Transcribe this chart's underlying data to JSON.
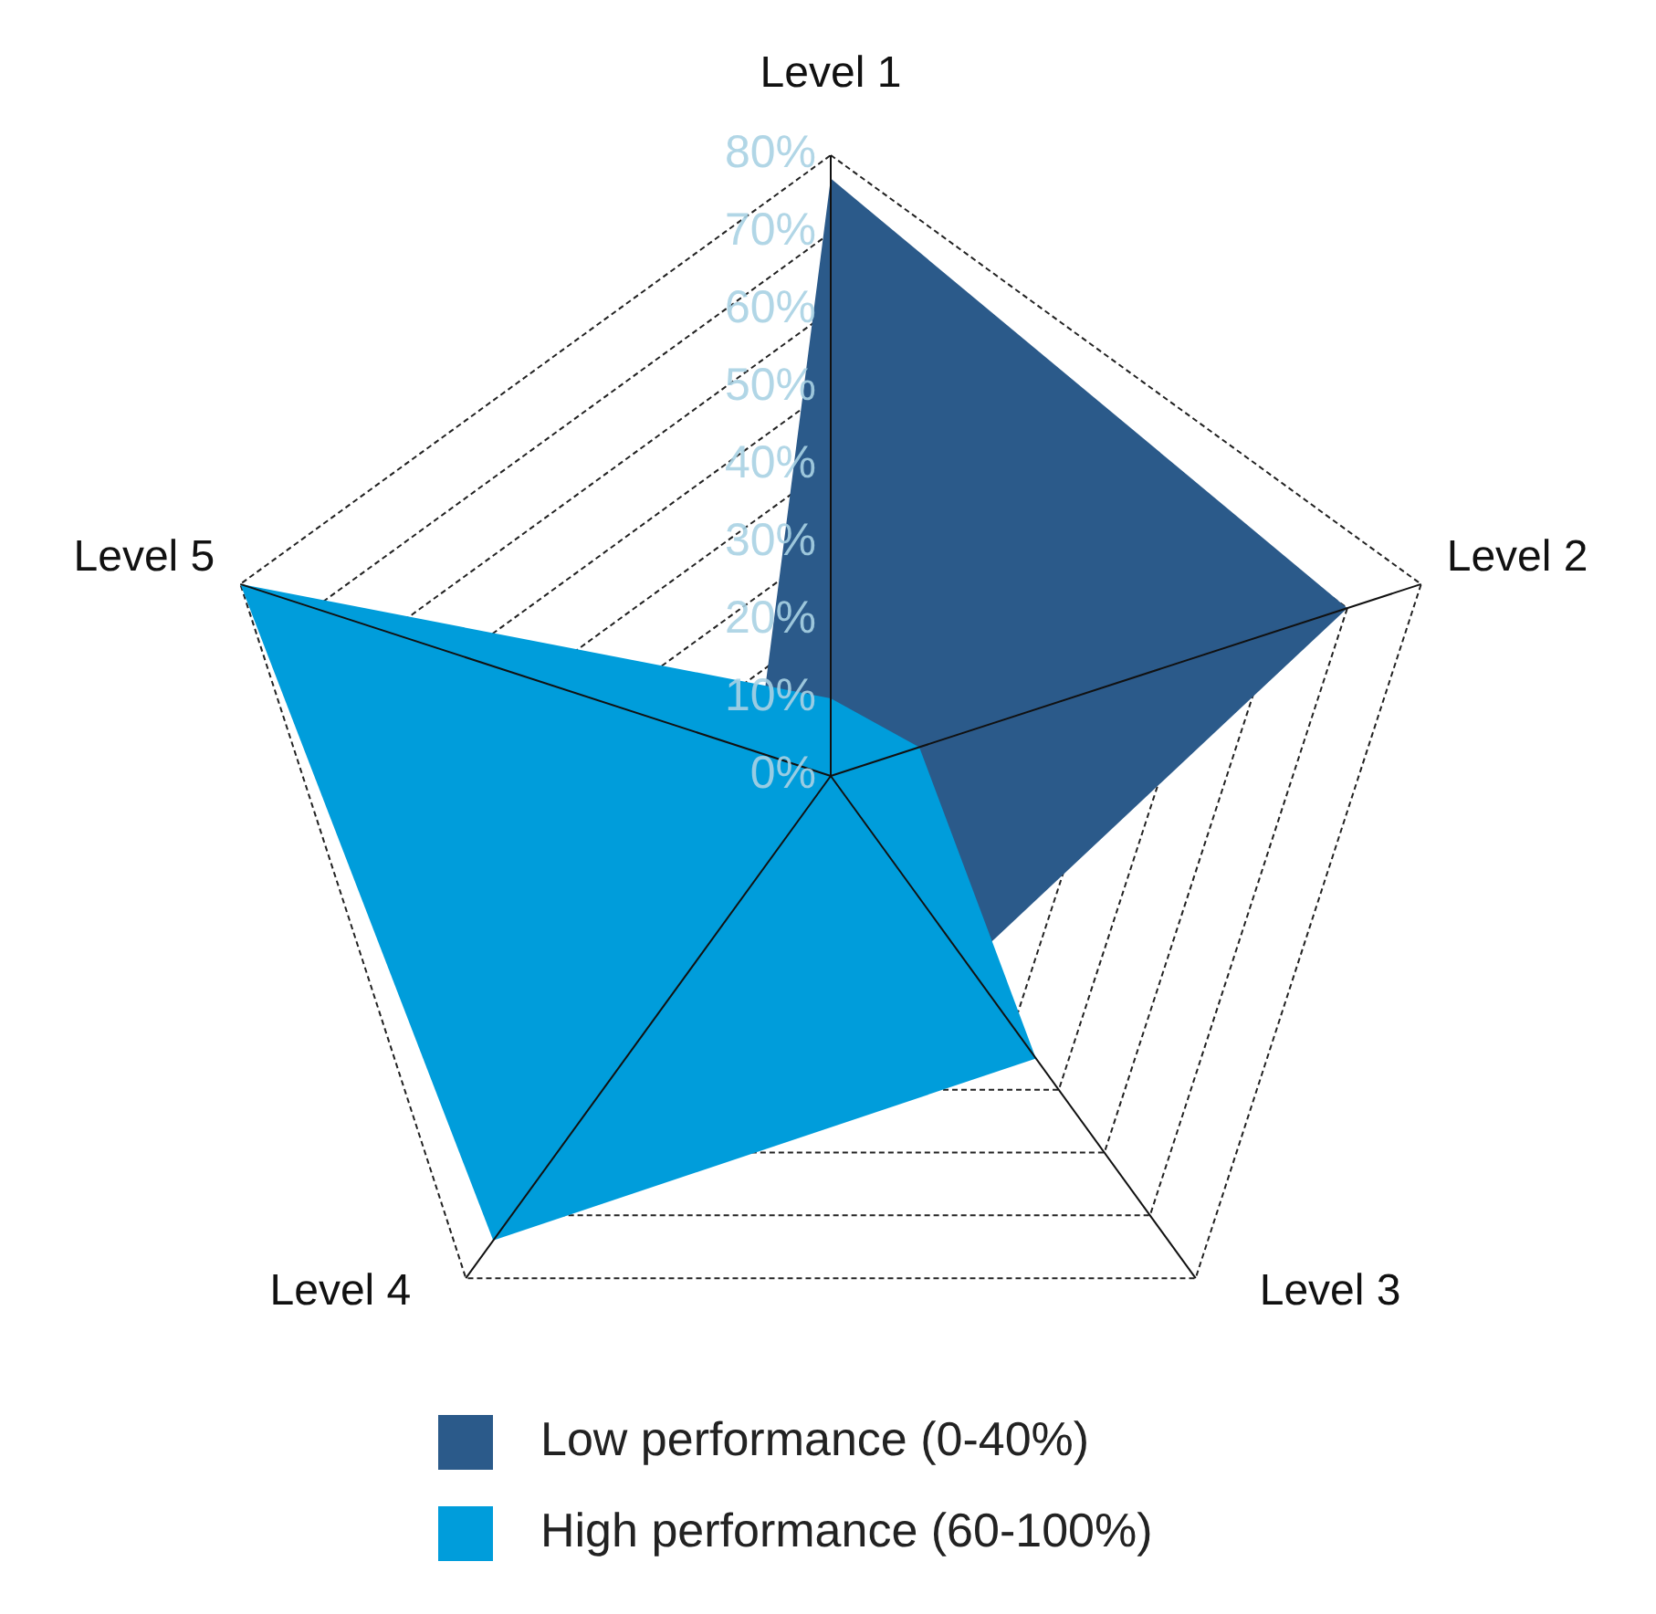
{
  "chart_data": {
    "type": "radar",
    "categories": [
      "Level 1",
      "Level 2",
      "Level 3",
      "Level 4",
      "Level 5"
    ],
    "series": [
      {
        "name": "Low performance (0-40%)",
        "color": "#2b5a8a",
        "values": [
          77,
          70,
          30,
          null,
          10
        ]
      },
      {
        "name": "High performance (60-100%)",
        "color": "#009ddb",
        "values": [
          10,
          12,
          45,
          74,
          80
        ]
      }
    ],
    "ylim": [
      0,
      80
    ],
    "yticks": [
      {
        "value": 0,
        "label": "0%"
      },
      {
        "value": 10,
        "label": "10%"
      },
      {
        "value": 20,
        "label": "20%"
      },
      {
        "value": 30,
        "label": "30%"
      },
      {
        "value": 40,
        "label": "40%"
      },
      {
        "value": 50,
        "label": "50%"
      },
      {
        "value": 60,
        "label": "60%"
      },
      {
        "value": 70,
        "label": "70%"
      },
      {
        "value": 80,
        "label": "80%"
      }
    ],
    "grid": true,
    "line_style": "dashed",
    "legend": "bottom"
  }
}
